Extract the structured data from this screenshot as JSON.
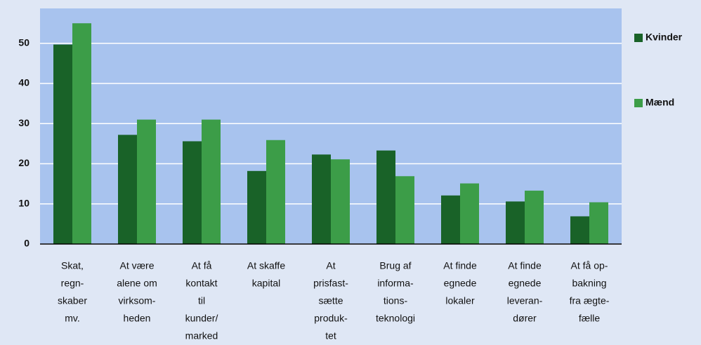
{
  "chart_data": {
    "type": "bar",
    "categories": [
      [
        "Skat,",
        "regn-",
        "skaber",
        "mv."
      ],
      [
        "At være",
        "alene om",
        "virksom-",
        "heden"
      ],
      [
        "At få",
        "kontakt",
        "til",
        "kunder/",
        "marked"
      ],
      [
        "At skaffe",
        "kapital"
      ],
      [
        "At",
        "prisfast-",
        "sætte",
        "produk-",
        "tet"
      ],
      [
        "Brug af",
        "informa-",
        "tions-",
        "teknologi"
      ],
      [
        "At finde",
        "egnede",
        "lokaler"
      ],
      [
        "At finde",
        "egnede",
        "leveran-",
        "dører"
      ],
      [
        "At få op-",
        "bakning",
        "fra ægte-",
        "fælle"
      ]
    ],
    "series": [
      {
        "name": "Kvinder",
        "color": "#196228",
        "values": [
          49.7,
          27.2,
          25.6,
          18.2,
          22.3,
          23.3,
          12.1,
          10.6,
          6.9
        ]
      },
      {
        "name": "Mænd",
        "color": "#3c9d48",
        "values": [
          55.0,
          31.0,
          31.0,
          25.9,
          21.1,
          16.9,
          15.1,
          13.3,
          10.4
        ]
      }
    ],
    "ylim": [
      0,
      58.7
    ],
    "yticks": [
      0,
      10,
      20,
      30,
      40,
      50
    ],
    "grid": true,
    "legend": "right"
  }
}
